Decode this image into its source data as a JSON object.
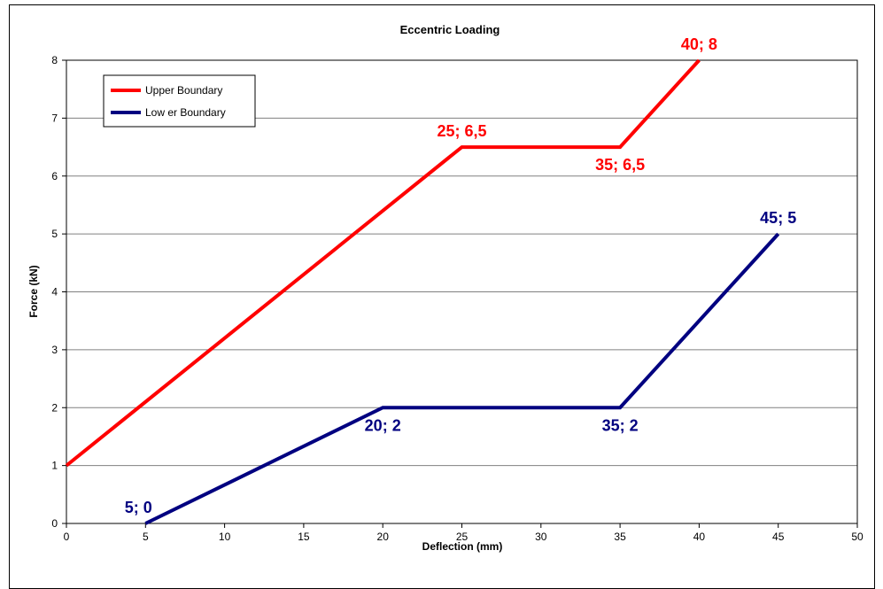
{
  "chart_data": {
    "type": "line",
    "title": "Eccentric Loading",
    "xlabel": "Deflection (mm)",
    "ylabel": "Force (kN)",
    "xlim": [
      0,
      50
    ],
    "ylim": [
      0,
      8
    ],
    "xticks": [
      0,
      5,
      10,
      15,
      20,
      25,
      30,
      35,
      40,
      45,
      50
    ],
    "yticks": [
      0,
      1,
      2,
      3,
      4,
      5,
      6,
      7,
      8
    ],
    "xtick_labels": [
      "0",
      "5",
      "10",
      "15",
      "20",
      "25",
      "30",
      "35",
      "40",
      "45",
      "50"
    ],
    "ytick_labels": [
      "0",
      "1",
      "2",
      "3",
      "4",
      "5",
      "6",
      "7",
      "8"
    ],
    "grid": "horizontal",
    "legend_placement": "top-left",
    "series": [
      {
        "name": "Upper Boundary",
        "color": "#ff0000",
        "points": [
          [
            0,
            1
          ],
          [
            25,
            6.5
          ],
          [
            35,
            6.5
          ],
          [
            40,
            8
          ]
        ]
      },
      {
        "name": "Low er Boundary",
        "color": "#000080",
        "points": [
          [
            5,
            0
          ],
          [
            20,
            2
          ],
          [
            35,
            2
          ],
          [
            45,
            5
          ]
        ]
      }
    ],
    "annotations": [
      {
        "text": "25; 6,5",
        "x": 25,
        "y": 6.5,
        "series": 0,
        "anchor": "above"
      },
      {
        "text": "35; 6,5",
        "x": 35,
        "y": 6.5,
        "series": 0,
        "anchor": "below"
      },
      {
        "text": "40; 8",
        "x": 40,
        "y": 8,
        "series": 0,
        "anchor": "above"
      },
      {
        "text": "5; 0",
        "x": 5,
        "y": 0,
        "series": 1,
        "anchor": "above-left"
      },
      {
        "text": "20; 2",
        "x": 20,
        "y": 2,
        "series": 1,
        "anchor": "below"
      },
      {
        "text": "35; 2",
        "x": 35,
        "y": 2,
        "series": 1,
        "anchor": "below"
      },
      {
        "text": "45; 5",
        "x": 45,
        "y": 5,
        "series": 1,
        "anchor": "above"
      }
    ]
  }
}
